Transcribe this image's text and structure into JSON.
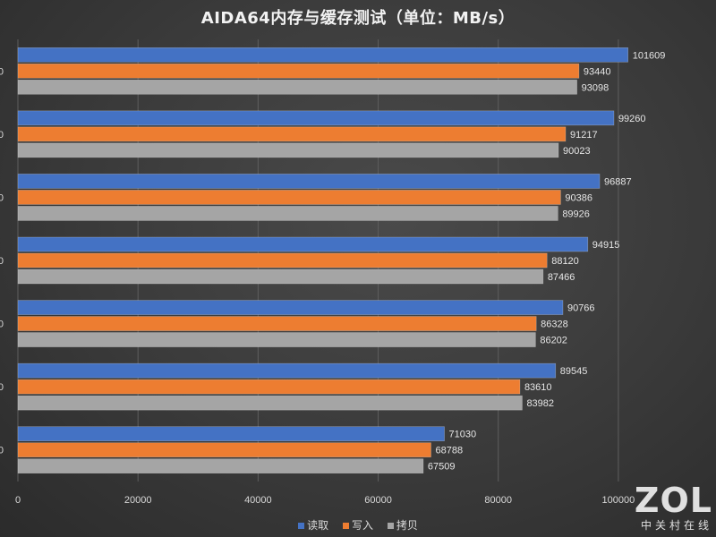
{
  "chart_data": {
    "type": "bar",
    "orientation": "horizontal",
    "title": "AIDA64内存与缓存测试（单位：MB/s）",
    "categories": [
      "0",
      "0",
      "0",
      "0",
      "0",
      "0",
      "0"
    ],
    "series": [
      {
        "name": "读取",
        "color": "#4472c4",
        "values": [
          101609,
          99260,
          96887,
          94915,
          90766,
          89545,
          71030
        ]
      },
      {
        "name": "写入",
        "color": "#ed7d31",
        "values": [
          93440,
          91217,
          90386,
          88120,
          86328,
          83610,
          68788
        ]
      },
      {
        "name": "拷贝",
        "color": "#a5a5a5",
        "values": [
          93098,
          90023,
          89926,
          87466,
          86202,
          83982,
          67509
        ]
      }
    ],
    "xlim": [
      0,
      110000
    ],
    "xticks": [
      0,
      20000,
      40000,
      60000,
      80000,
      100000
    ],
    "grid": true,
    "data_labels": true,
    "legend_position": "bottom"
  },
  "watermark": {
    "logo": "ZOL",
    "sub": "中关村在线"
  }
}
